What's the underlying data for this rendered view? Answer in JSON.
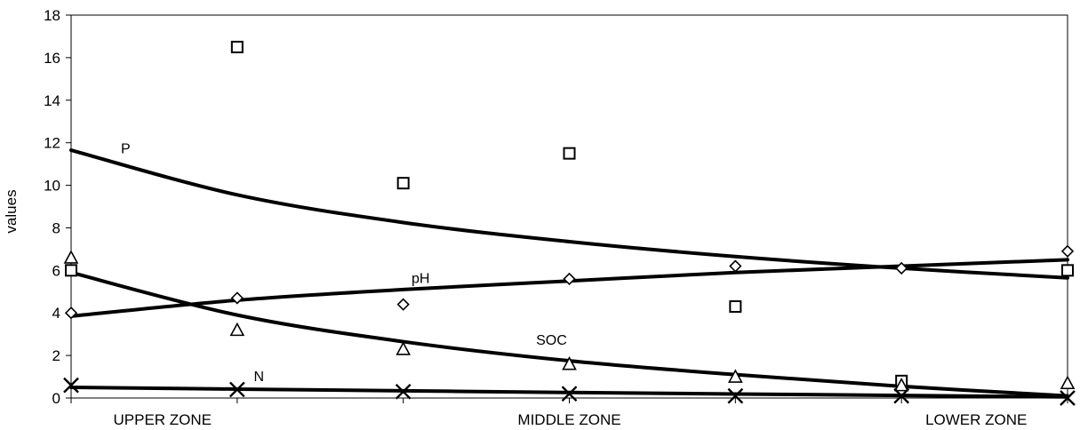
{
  "chart_data": {
    "type": "scatter",
    "title": "",
    "xlabel": "",
    "ylabel": "values",
    "ylim": [
      0,
      18
    ],
    "yticks": [
      0,
      2,
      4,
      6,
      8,
      10,
      12,
      14,
      16,
      18
    ],
    "x": [
      1,
      2,
      3,
      4,
      5,
      6,
      7
    ],
    "xlim": [
      1,
      7
    ],
    "zone_labels": [
      {
        "text": "UPPER ZONE",
        "x": 1.55
      },
      {
        "text": "MIDDLE ZONE",
        "x": 4.0
      },
      {
        "text": "LOWER ZONE",
        "x": 6.45
      }
    ],
    "grid": false,
    "legend": "none",
    "series": [
      {
        "name": "P",
        "marker": "square",
        "values": [
          6.0,
          16.5,
          10.1,
          11.5,
          4.3,
          0.8,
          6.0
        ],
        "trend": [
          11.65,
          9.55,
          8.25,
          7.35,
          6.65,
          6.1,
          5.65
        ],
        "label_at": {
          "x": 1.3,
          "y": 11.5
        }
      },
      {
        "name": "pH",
        "marker": "diamond",
        "values": [
          4.0,
          4.7,
          4.4,
          5.6,
          6.2,
          6.1,
          6.9
        ],
        "trend": [
          3.85,
          4.6,
          5.1,
          5.5,
          5.9,
          6.2,
          6.5
        ],
        "label_at": {
          "x": 3.05,
          "y": 5.4
        }
      },
      {
        "name": "SOC",
        "marker": "triangle",
        "values": [
          6.6,
          3.2,
          2.3,
          1.6,
          1.0,
          0.6,
          0.7
        ],
        "trend": [
          5.9,
          3.9,
          2.65,
          1.75,
          1.1,
          0.55,
          0.1
        ],
        "label_at": {
          "x": 3.8,
          "y": 2.5
        }
      },
      {
        "name": "N",
        "marker": "x",
        "values": [
          0.6,
          0.4,
          0.3,
          0.2,
          0.1,
          0.1,
          0.0
        ],
        "trend": [
          0.5,
          0.42,
          0.34,
          0.26,
          0.19,
          0.12,
          0.05
        ],
        "label_at": {
          "x": 2.1,
          "y": 0.8
        }
      }
    ]
  }
}
